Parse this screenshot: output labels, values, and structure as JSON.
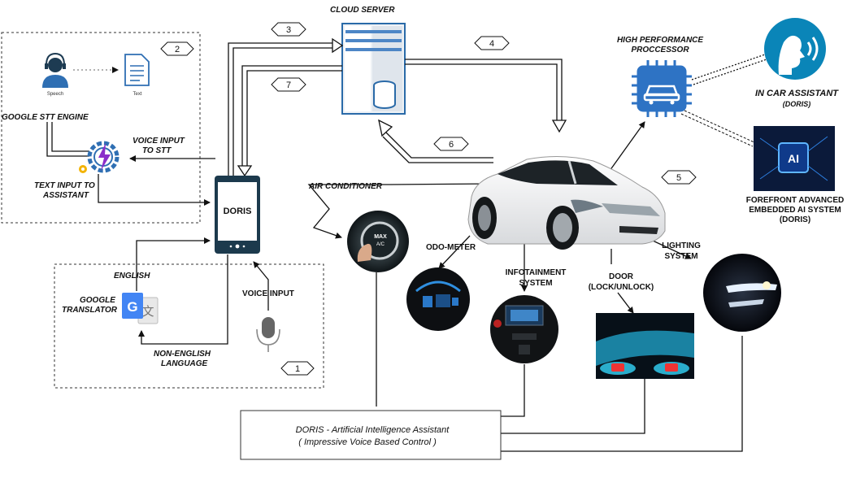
{
  "labels": {
    "cloud_server": "CLOUD SERVER",
    "high_perf_line1": "HIGH PERFORMANCE",
    "high_perf_line2": "PROCCESSOR",
    "in_car_assistant": "IN CAR ASSISTANT",
    "in_car_doris": "(DORIS)",
    "forefront_line1": "FOREFRONT ADVANCED",
    "forefront_line2": "EMBEDDED AI SYSTEM",
    "forefront_line3": "(DORIS)",
    "google_stt": "GOOGLE STT ENGINE",
    "speech": "Speech",
    "text": "Text",
    "voice_input_stt_line1": "VOICE INPUT",
    "voice_input_stt_line2": "TO STT",
    "text_input_line1": "TEXT INPUT TO",
    "text_input_line2": "ASSISTANT",
    "doris": "DORIS",
    "english": "ENGLISH",
    "google_translator_line1": "GOOGLE",
    "google_translator_line2": "TRANSLATOR",
    "non_english_line1": "NON-ENGLISH",
    "non_english_line2": "LANGUAGE",
    "voice_input": "VOICE INPUT",
    "air_conditioner": "AIR CONDITIONER",
    "odo_meter": "ODO-METER",
    "infotainment_line1": "INFOTAINMENT",
    "infotainment_line2": "SYSTEM",
    "door_line1": "DOOR",
    "door_line2": "(LOCK/UNLOCK)",
    "lighting_line1": "LIGHTING",
    "lighting_line2": "SYSTEM",
    "ac_button_line1": "MAX",
    "ac_button_line2": "A/C",
    "ai_chip": "AI",
    "box_line1": "DORIS -  Artificial Intelligence Assistant",
    "box_line2": "( Impressive Voice Based Control )"
  },
  "badges": [
    "1",
    "2",
    "3",
    "4",
    "5",
    "6",
    "7"
  ],
  "colors": {
    "phone": "#1c3a4d",
    "assistant_icon": "#0a85b8",
    "processor": "#2e73c4",
    "google_blue": "#4285f4",
    "ai_chip_bg": "#0b1a3a"
  }
}
